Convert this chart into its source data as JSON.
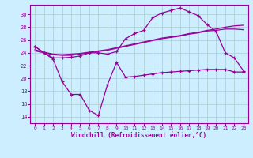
{
  "bg_color": "#cceeff",
  "line_color": "#990099",
  "grid_color": "#aacccc",
  "xlabel": "Windchill (Refroidissement éolien,°C)",
  "ylim": [
    13,
    31.5
  ],
  "yticks": [
    14,
    16,
    18,
    20,
    22,
    24,
    26,
    28,
    30
  ],
  "xticks": [
    0,
    1,
    2,
    3,
    4,
    5,
    6,
    7,
    8,
    9,
    10,
    11,
    12,
    13,
    14,
    15,
    16,
    17,
    18,
    19,
    20,
    21,
    22,
    23
  ],
  "upper_curve": [
    25,
    24,
    23,
    19.5,
    17.5,
    17.5,
    15.0,
    14.2,
    19.0,
    22.5,
    20.2,
    20.3,
    20.5,
    20.7,
    20.9,
    21.0,
    21.1,
    21.2,
    21.3,
    21.4,
    21.4,
    21.4,
    21.0,
    21.0
  ],
  "peak_curve": [
    25.0,
    24.0,
    23.2,
    23.2,
    23.3,
    23.5,
    24.0,
    24.0,
    23.8,
    24.2,
    26.2,
    27.0,
    27.5,
    29.5,
    30.2,
    30.6,
    31.0,
    30.4,
    29.8,
    28.4,
    27.3,
    24.0,
    23.2,
    21.2
  ],
  "trend1": [
    24.5,
    24.1,
    23.8,
    23.7,
    23.8,
    23.9,
    24.1,
    24.3,
    24.5,
    24.8,
    25.1,
    25.4,
    25.7,
    26.0,
    26.3,
    26.5,
    26.7,
    27.0,
    27.2,
    27.5,
    27.7,
    28.0,
    28.2,
    28.3
  ],
  "trend2": [
    24.3,
    24.0,
    23.7,
    23.6,
    23.6,
    23.8,
    24.0,
    24.2,
    24.4,
    24.7,
    25.0,
    25.3,
    25.6,
    25.9,
    26.2,
    26.4,
    26.6,
    26.9,
    27.1,
    27.4,
    27.5,
    27.7,
    27.7,
    27.6
  ]
}
